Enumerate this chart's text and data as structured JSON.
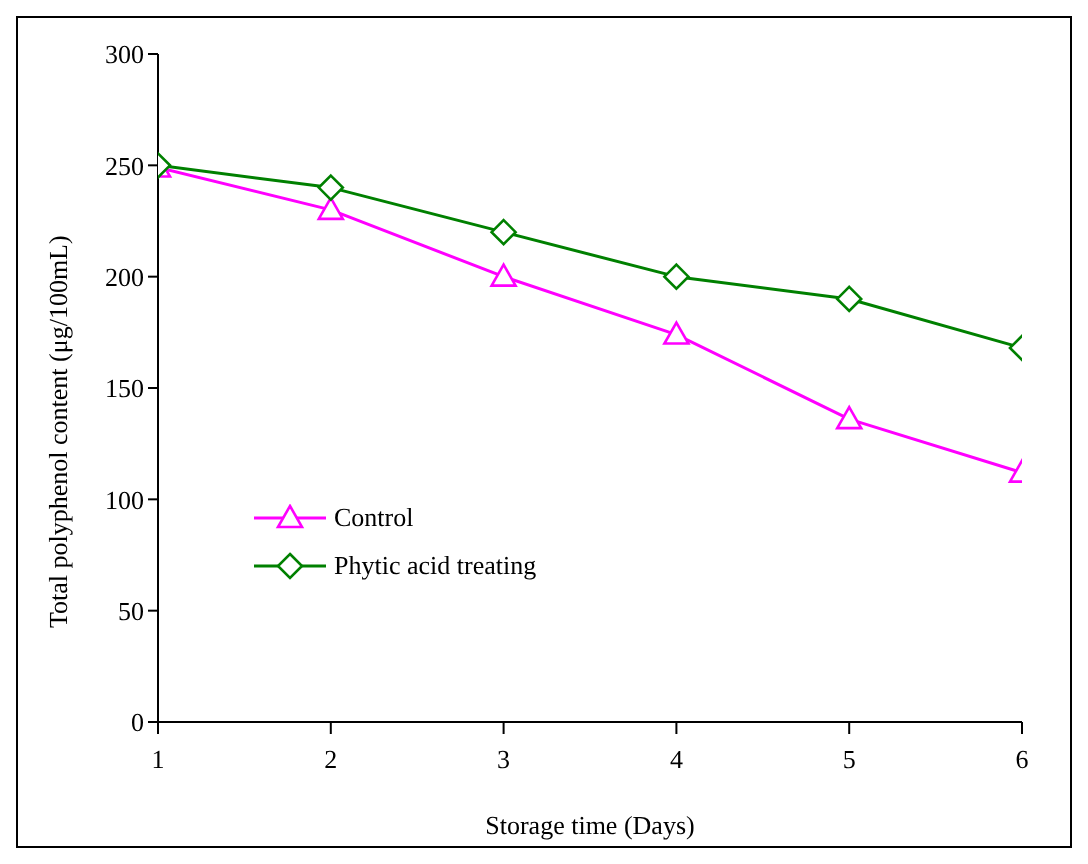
{
  "chart_data": {
    "type": "line",
    "xlabel": "Storage time (Days)",
    "ylabel": "Total polyphenol content (μg/100mL)",
    "x": [
      1,
      2,
      3,
      4,
      5,
      6
    ],
    "series": [
      {
        "name": "Control",
        "color": "#ff00ff",
        "marker": "triangle",
        "values": [
          249,
          230,
          200,
          174,
          136,
          112
        ]
      },
      {
        "name": "Phytic acid treating",
        "color": "#008000",
        "marker": "diamond",
        "values": [
          250,
          240,
          220,
          200,
          190,
          168
        ]
      }
    ],
    "xlim": [
      1,
      6
    ],
    "xticks": [
      1,
      2,
      3,
      4,
      5,
      6
    ],
    "ylim": [
      0,
      300
    ],
    "yticks": [
      0,
      50,
      100,
      150,
      200,
      250,
      300
    ],
    "grid": false,
    "legend": "left",
    "line_style": "solid"
  }
}
